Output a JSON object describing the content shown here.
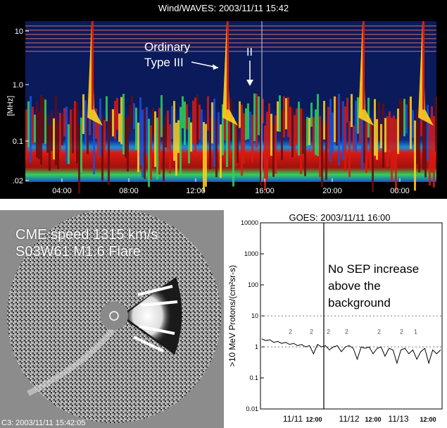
{
  "radio_panel": {
    "title": "Wind/WAVES: 2003/11/11 15:42",
    "annotation_ordinary": [
      "Ordinary",
      "Type III"
    ],
    "annotation_ii": "II"
  },
  "lasco_panel": {
    "line1": "CME speed 1315 km/s",
    "line2": "S03W61 M1.6 Flare",
    "caption": "C3: 2003/11/11 15:42:05"
  },
  "goes_panel": {
    "title": "GOES: 2003/11/11 16:00",
    "note": [
      "No SEP increase",
      "above the",
      "background"
    ]
  },
  "chart_data": [
    {
      "type": "heatmap",
      "title": "Wind/WAVES: 2003/11/11 15:42",
      "ylabel": "[MHz]",
      "y_scale": "log",
      "y_ticks": [
        "10",
        "1.0",
        "0.1",
        ".02"
      ],
      "x_ticks": [
        "04:00",
        "08:00",
        "12:00",
        "16:00",
        "20:00",
        "00:00"
      ],
      "colors": {
        "background": "#0a1a5a",
        "low": "#1d4fd8",
        "mid": "#2fd35a",
        "high": "#ffd21e",
        "peak": "#d81a12",
        "max": "#6b0c0c"
      }
    },
    {
      "type": "line",
      "title": "GOES: 2003/11/11 16:00",
      "ylabel": ">10 MeV Protons/(cm²sr-s)",
      "y_scale": "log",
      "ylim": [
        0.01,
        10000
      ],
      "y_ticks": [
        "10000",
        "1000",
        "100",
        "10",
        "1",
        "0.1",
        "0.01"
      ],
      "x_ticks": [
        "11/11",
        "12:00",
        "11/12",
        "12:00",
        "11/13",
        "12:00"
      ],
      "threshold_lines": [
        10,
        1
      ],
      "marker_time": "2003/11/11 16:00",
      "overlay_digits": [
        "2",
        "2",
        "2",
        "2",
        "2",
        "2",
        "1"
      ],
      "series": [
        {
          "values": [
            1.8,
            1.6,
            1.7,
            1.4,
            1.5,
            1.3,
            1.4,
            1.2,
            1.3,
            1.1,
            1.2,
            1.0,
            1.1,
            0.6,
            1.2,
            1.0,
            1.1,
            0.8,
            1.0,
            1.1,
            0.7,
            1.0,
            1.1,
            0.9,
            0.4,
            1.0,
            0.9,
            1.0,
            0.6,
            0.9,
            1.0,
            0.5,
            0.9,
            0.8,
            0.3,
            0.8,
            0.9,
            0.6,
            0.8,
            0.4,
            0.7,
            0.9,
            0.3,
            0.8,
            0.6,
            0.8
          ]
        }
      ]
    }
  ]
}
